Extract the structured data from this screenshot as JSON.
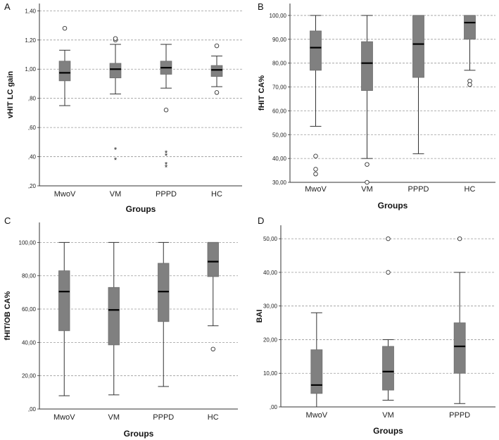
{
  "colors": {
    "box": "#808080",
    "grid": "#9a9a9a",
    "line": "#333333",
    "median": "#000000"
  },
  "chart_data": [
    {
      "panel": "A",
      "type": "box",
      "xlabel": "Groups",
      "ylabel": "vHIT LC gain",
      "ylim": [
        0.2,
        1.45
      ],
      "yticks": [
        {
          "v": 0.2,
          "label": ",20"
        },
        {
          "v": 0.4,
          "label": ",40"
        },
        {
          "v": 0.6,
          "label": ",60"
        },
        {
          "v": 0.8,
          "label": ",80"
        },
        {
          "v": 1.0,
          "label": "1,00"
        },
        {
          "v": 1.2,
          "label": "1,20"
        },
        {
          "v": 1.4,
          "label": "1,40"
        }
      ],
      "groups": [
        {
          "name": "MwoV",
          "min": 0.75,
          "q1": 0.92,
          "median": 0.975,
          "q3": 1.055,
          "max": 1.13,
          "outliers": [
            1.28
          ],
          "extremes": []
        },
        {
          "name": "VM",
          "min": 0.83,
          "q1": 0.94,
          "median": 1.0,
          "q3": 1.04,
          "max": 1.17,
          "outliers": [
            1.2,
            1.21
          ],
          "extremes": [
            0.45,
            0.38
          ]
        },
        {
          "name": "PPPD",
          "min": 0.87,
          "q1": 0.965,
          "median": 1.01,
          "q3": 1.055,
          "max": 1.17,
          "outliers": [
            0.72
          ],
          "extremes": [
            0.43,
            0.41,
            0.35,
            0.33
          ]
        },
        {
          "name": "HC",
          "min": 0.88,
          "q1": 0.95,
          "median": 0.995,
          "q3": 1.025,
          "max": 1.09,
          "outliers": [
            1.16,
            0.84
          ],
          "extremes": []
        }
      ]
    },
    {
      "panel": "B",
      "type": "box",
      "xlabel": "Groups",
      "ylabel": "fHIT CA%",
      "ylim": [
        30,
        105
      ],
      "yticks": [
        {
          "v": 30,
          "label": "30,00"
        },
        {
          "v": 40,
          "label": "40,00"
        },
        {
          "v": 50,
          "label": "50,00"
        },
        {
          "v": 60,
          "label": "60,00"
        },
        {
          "v": 70,
          "label": "70,00"
        },
        {
          "v": 80,
          "label": "80,00"
        },
        {
          "v": 90,
          "label": "90,00"
        },
        {
          "v": 100,
          "label": "100,00"
        }
      ],
      "groups": [
        {
          "name": "MwoV",
          "min": 53.5,
          "q1": 77,
          "median": 86.5,
          "q3": 93.5,
          "max": 100,
          "outliers": [
            41,
            35.5,
            33.5
          ],
          "extremes": []
        },
        {
          "name": "VM",
          "min": 40,
          "q1": 68.5,
          "median": 80,
          "q3": 89,
          "max": 100,
          "outliers": [
            37.5,
            30
          ],
          "extremes": []
        },
        {
          "name": "PPPD",
          "min": 42,
          "q1": 74,
          "median": 88,
          "q3": 100,
          "max": 100,
          "outliers": [],
          "extremes": []
        },
        {
          "name": "HC",
          "min": 77,
          "q1": 90,
          "median": 97,
          "q3": 100,
          "max": 100,
          "outliers": [
            72.5,
            71
          ],
          "extremes": []
        }
      ]
    },
    {
      "panel": "C",
      "type": "box",
      "xlabel": "Groups",
      "ylabel": "fHIT/OB CA%",
      "ylim": [
        0,
        112
      ],
      "yticks": [
        {
          "v": 0,
          "label": ",00"
        },
        {
          "v": 20,
          "label": "20,00"
        },
        {
          "v": 40,
          "label": "40,00"
        },
        {
          "v": 60,
          "label": "60,00"
        },
        {
          "v": 80,
          "label": "80,00"
        },
        {
          "v": 100,
          "label": "100,00"
        }
      ],
      "groups": [
        {
          "name": "MwoV",
          "min": 8,
          "q1": 47,
          "median": 70.5,
          "q3": 83,
          "max": 100,
          "outliers": [],
          "extremes": []
        },
        {
          "name": "VM",
          "min": 8.5,
          "q1": 38.5,
          "median": 59.5,
          "q3": 73,
          "max": 100,
          "outliers": [],
          "extremes": []
        },
        {
          "name": "PPPD",
          "min": 13.5,
          "q1": 52.5,
          "median": 70.5,
          "q3": 87.5,
          "max": 100,
          "outliers": [],
          "extremes": []
        },
        {
          "name": "HC",
          "min": 50,
          "q1": 79.5,
          "median": 88.5,
          "q3": 100,
          "max": 100,
          "outliers": [
            36
          ],
          "extremes": []
        }
      ]
    },
    {
      "panel": "D",
      "type": "box",
      "xlabel": "Groups",
      "ylabel": "BAI",
      "ylim": [
        0,
        54
      ],
      "yticks": [
        {
          "v": 0,
          "label": ",00"
        },
        {
          "v": 10,
          "label": "10,00"
        },
        {
          "v": 20,
          "label": "20,00"
        },
        {
          "v": 30,
          "label": "30,00"
        },
        {
          "v": 40,
          "label": "40,00"
        },
        {
          "v": 50,
          "label": "50,00"
        }
      ],
      "groups": [
        {
          "name": "MwoV",
          "min": 0,
          "q1": 4,
          "median": 6.5,
          "q3": 17,
          "max": 28,
          "outliers": [],
          "extremes": []
        },
        {
          "name": "VM",
          "min": 2,
          "q1": 5,
          "median": 10.5,
          "q3": 18,
          "max": 20,
          "outliers": [
            40,
            50
          ],
          "extremes": []
        },
        {
          "name": "PPPD",
          "min": 1,
          "q1": 10,
          "median": 18,
          "q3": 25,
          "max": 40,
          "outliers": [
            50
          ],
          "extremes": []
        }
      ]
    }
  ]
}
